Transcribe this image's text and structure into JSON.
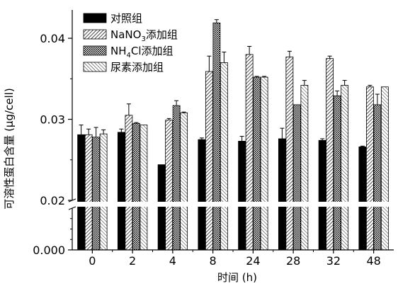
{
  "chart_data": {
    "type": "bar",
    "xlabel": "时间 (h)",
    "ylabel": "可溶性蛋白含量 (μg/cell)",
    "categories": [
      "0",
      "2",
      "4",
      "8",
      "24",
      "28",
      "32",
      "48"
    ],
    "y_ticks": [
      "0.000",
      "0.02",
      "0.03",
      "0.04"
    ],
    "y_tick_values": [
      0.0,
      0.02,
      0.03,
      0.04
    ],
    "ylim_upper": [
      0.02,
      0.0435
    ],
    "ylim_lower": [
      0.0,
      0.02
    ],
    "axis_break": true,
    "legend_position": "top-left",
    "series": [
      {
        "name": "对照组",
        "pattern": "solid",
        "values": [
          0.0281,
          0.0284,
          0.0244,
          0.0275,
          0.0273,
          0.0276,
          0.0274,
          0.0266
        ],
        "errors": [
          0.0012,
          0.0004,
          0.0,
          0.0002,
          0.0006,
          0.0013,
          0.0002,
          0.0001
        ]
      },
      {
        "name": "NaNO",
        "name_sub": "3",
        "name_suffix": "添加组",
        "pattern": "diagonal",
        "values": [
          0.0281,
          0.0305,
          0.0299,
          0.0359,
          0.038,
          0.0377,
          0.0375,
          0.034
        ],
        "errors": [
          0.0007,
          0.0014,
          0.0002,
          0.0019,
          0.001,
          0.0007,
          0.0003,
          0.0002
        ]
      },
      {
        "name": "NH",
        "name_sub": "4",
        "name_suffix": "Cl添加组",
        "pattern": "grid",
        "values": [
          0.0278,
          0.0295,
          0.0317,
          0.0419,
          0.0352,
          0.0318,
          0.0329,
          0.0318
        ],
        "errors": [
          0.0012,
          0.0001,
          0.0006,
          0.0004,
          0.0001,
          0.0,
          0.0006,
          0.0013
        ]
      },
      {
        "name": "尿素添加组",
        "pattern": "diagonal-light",
        "values": [
          0.0282,
          0.0293,
          0.0308,
          0.037,
          0.0352,
          0.0342,
          0.0342,
          0.034
        ],
        "errors": [
          0.0005,
          0.0,
          0.0001,
          0.0013,
          0.0001,
          0.0006,
          0.0006,
          0.0
        ]
      }
    ]
  }
}
